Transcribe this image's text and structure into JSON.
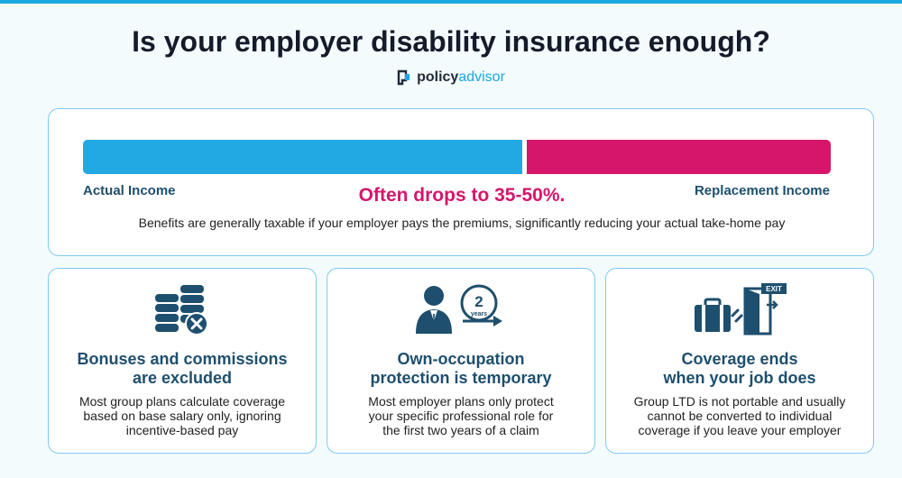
{
  "header": {
    "title": "Is your employer disability insurance enough?",
    "brand_part1": "policy",
    "brand_part2": "advisor"
  },
  "income_bar": {
    "actual_label": "Actual Income",
    "replacement_label": "Replacement Income",
    "highlight": "Often drops to 35-50%.",
    "note": "Benefits are generally taxable if your employer pays the premiums, significantly reducing your actual take-home pay",
    "colors": {
      "actual": "#22a8e3",
      "replacement": "#d5166b"
    }
  },
  "cards": [
    {
      "icon": "coins-excluded-icon",
      "title_line1": "Bonuses and commissions",
      "title_line2": "are excluded",
      "body_line1": "Most group plans calculate coverage",
      "body_line2": "based on base salary only, ignoring",
      "body_line3": "incentive-based pay"
    },
    {
      "icon": "professional-2-years-icon",
      "icon_badge_number": "2",
      "icon_badge_unit": "years",
      "title_line1": "Own-occupation",
      "title_line2": "protection is temporary",
      "body_line1": "Most employer plans only protect",
      "body_line2": "your specific professional role for",
      "body_line3": "the first two years of a claim"
    },
    {
      "icon": "briefcase-exit-icon",
      "icon_sign": "EXIT",
      "title_line1": "Coverage ends",
      "title_line2": "when your job does",
      "body_line1": "Group LTD is not portable and usually",
      "body_line2": "cannot be converted to individual",
      "body_line3": "coverage if you leave your employer"
    }
  ]
}
